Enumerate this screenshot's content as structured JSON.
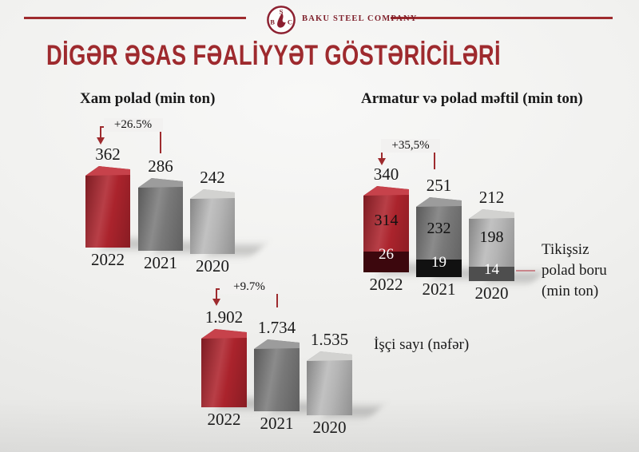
{
  "header": {
    "company": "BAKU STEEL COMPANY",
    "logo_letters": {
      "top": "S",
      "left": "B",
      "right": "C"
    },
    "accent_color": "#9e2b2e"
  },
  "page_title": "DİGƏR ƏSAS FƏALİYYƏT GÖSTƏRİCİLƏRİ",
  "palette": {
    "bar_front": [
      "#ae242d",
      "#7b7b7b",
      "#b9b9b9"
    ],
    "bar_top": [
      "#c7424b",
      "#9c9c9c",
      "#d2d2d0"
    ],
    "segment": [
      "#3c070d",
      "#111111",
      "#4e4e4e"
    ],
    "annotation_color": "#9e2b2e",
    "connector_color": "#c9858b",
    "title_color": "#9e2a2e"
  },
  "chart_data": [
    {
      "type": "bar",
      "title": "Xam polad (min ton)",
      "categories": [
        "2022",
        "2021",
        "2020"
      ],
      "values": [
        362,
        286,
        242
      ],
      "value_labels": [
        "362",
        "286",
        "242"
      ],
      "annotation": {
        "text": "+26.5%",
        "from": "2021",
        "to": "2022"
      },
      "legend_position": "none",
      "grid": false
    },
    {
      "type": "stacked-bar",
      "title": "Armatur və polad məftil (min ton)",
      "categories": [
        "2022",
        "2021",
        "2020"
      ],
      "series": [
        {
          "name": "Armatur və polad məftil",
          "values": [
            314,
            232,
            198
          ]
        },
        {
          "name": "Tikişsiz polad boru",
          "values": [
            26,
            19,
            14
          ]
        }
      ],
      "totals": [
        340,
        251,
        212
      ],
      "value_labels": [
        "340",
        "251",
        "212"
      ],
      "annotation": {
        "text": "+35,5%",
        "from": "2021",
        "to": "2022"
      },
      "side_label": "Tikişsiz polad boru (min ton)",
      "legend_position": "right-callout",
      "grid": false
    },
    {
      "type": "bar",
      "title": "İşçi sayı (nəfər)",
      "categories": [
        "2022",
        "2021",
        "2020"
      ],
      "values": [
        1902,
        1734,
        1535
      ],
      "value_labels": [
        "1.902",
        "1.734",
        "1.535"
      ],
      "annotation": {
        "text": "+9.7%",
        "from": "2021",
        "to": "2022"
      },
      "side_label": "İşçi sayı (nəfər)",
      "legend_position": "none",
      "grid": false
    }
  ]
}
